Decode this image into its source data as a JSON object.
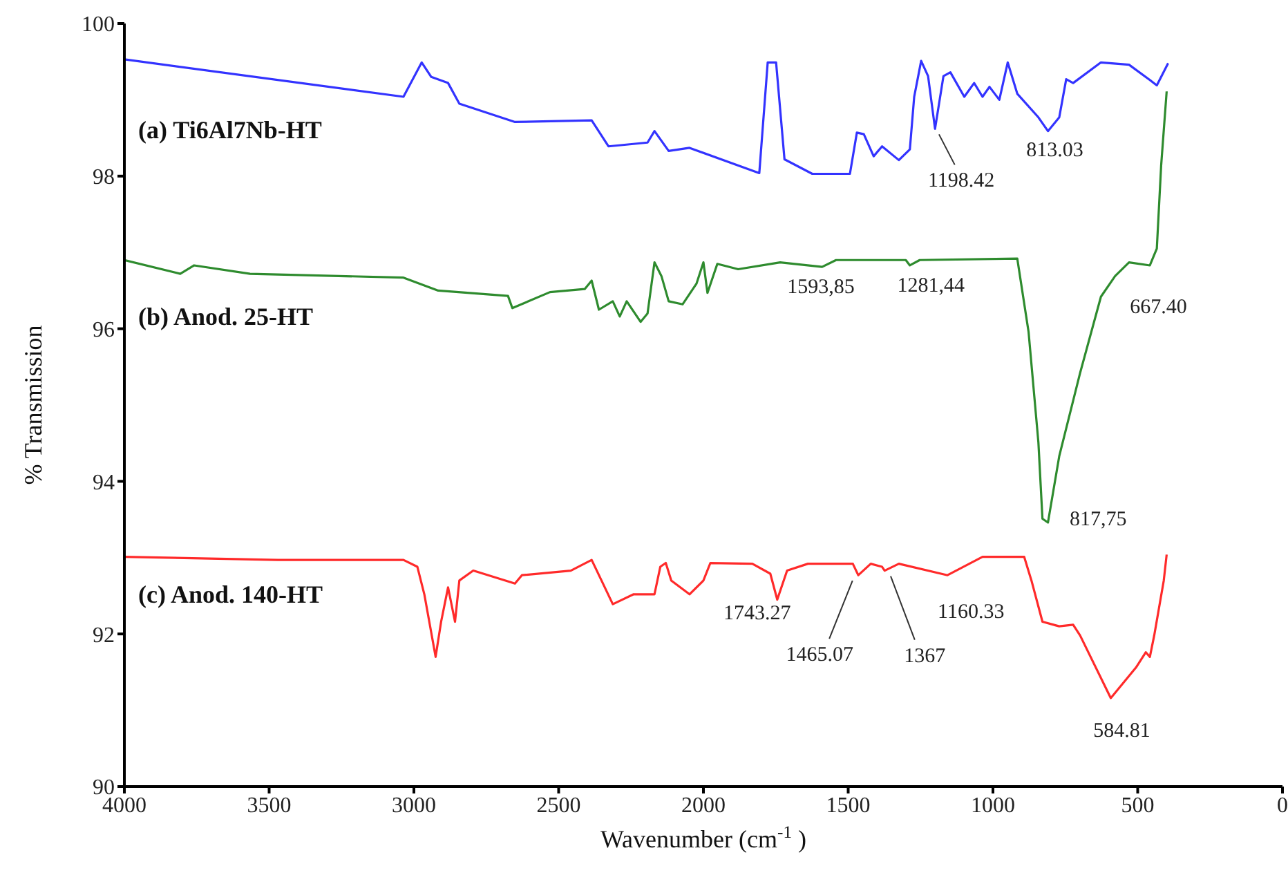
{
  "chart_data": {
    "type": "line",
    "xlabel": "Wavenumber  (cm$^{-1}$ )",
    "ylabel": "% Transmission",
    "xlim": [
      4000,
      0
    ],
    "xticks": [
      4000,
      3500,
      3000,
      2500,
      2000,
      1500,
      1000,
      500,
      0
    ],
    "ylim": [
      90,
      100
    ],
    "yticks": [
      90,
      92,
      94,
      96,
      98,
      100
    ],
    "grid": false,
    "legend": false,
    "marker": "none",
    "line_style": "solid",
    "series": [
      {
        "name": "(a) Ti6Al7Nb-HT",
        "color": "#3333ff",
        "x": [
          4000,
          3036,
          2973,
          2940,
          2882,
          2843,
          2651,
          2386,
          2328,
          2193,
          2169,
          2120,
          2048,
          1807,
          1778,
          1749,
          1720,
          1624,
          1494,
          1470,
          1446,
          1412,
          1383,
          1325,
          1287,
          1272,
          1248,
          1224,
          1200,
          1171,
          1147,
          1099,
          1065,
          1036,
          1012,
          978,
          949,
          916,
          843,
          810,
          771,
          747,
          723,
          627,
          530,
          458,
          434,
          395
        ],
        "values": [
          99.53,
          99.04,
          99.49,
          99.3,
          99.22,
          98.95,
          98.71,
          98.73,
          98.39,
          98.44,
          98.59,
          98.33,
          98.37,
          98.04,
          99.49,
          99.49,
          98.22,
          98.03,
          98.03,
          98.57,
          98.55,
          98.26,
          98.39,
          98.21,
          98.35,
          99.04,
          99.51,
          99.31,
          98.62,
          99.31,
          99.36,
          99.04,
          99.22,
          99.04,
          99.17,
          99.0,
          99.49,
          99.08,
          98.77,
          98.59,
          98.77,
          99.27,
          99.22,
          99.49,
          99.46,
          99.26,
          99.19,
          99.48
        ]
      },
      {
        "name": "(b)  Anod. 25-HT",
        "color": "#2e8b2e",
        "x": [
          4000,
          3807,
          3759,
          3566,
          3036,
          2916,
          2675,
          2660,
          2530,
          2410,
          2386,
          2361,
          2313,
          2289,
          2265,
          2217,
          2193,
          2169,
          2145,
          2120,
          2072,
          2024,
          2000,
          1986,
          1952,
          1880,
          1735,
          1590,
          1542,
          1301,
          1287,
          1253,
          916,
          877,
          843,
          829,
          810,
          771,
          699,
          627,
          578,
          530,
          458,
          434,
          419,
          400
        ],
        "values": [
          96.9,
          96.72,
          96.83,
          96.72,
          96.67,
          96.5,
          96.43,
          96.27,
          96.48,
          96.52,
          96.63,
          96.25,
          96.36,
          96.16,
          96.36,
          96.09,
          96.2,
          96.87,
          96.69,
          96.36,
          96.32,
          96.59,
          96.87,
          96.47,
          96.85,
          96.78,
          96.87,
          96.81,
          96.9,
          96.9,
          96.83,
          96.9,
          96.92,
          95.96,
          94.51,
          93.51,
          93.46,
          94.33,
          95.42,
          96.42,
          96.69,
          96.87,
          96.83,
          97.05,
          98.14,
          99.11
        ]
      },
      {
        "name": "(c) Anod. 140-HT",
        "color": "#ff2a2a",
        "x": [
          4000,
          3470,
          3036,
          2988,
          2964,
          2925,
          2906,
          2882,
          2858,
          2843,
          2795,
          2651,
          2627,
          2458,
          2386,
          2352,
          2313,
          2241,
          2169,
          2149,
          2130,
          2111,
          2048,
          2000,
          1976,
          1831,
          1769,
          1745,
          1711,
          1639,
          1484,
          1465,
          1422,
          1383,
          1374,
          1325,
          1157,
          1036,
          892,
          867,
          829,
          771,
          723,
          699,
          593,
          506,
          472,
          458,
          443,
          410,
          400
        ],
        "values": [
          93.01,
          92.97,
          92.97,
          92.88,
          92.52,
          91.7,
          92.16,
          92.61,
          92.16,
          92.7,
          92.83,
          92.66,
          92.77,
          92.83,
          92.97,
          92.7,
          92.39,
          92.52,
          92.52,
          92.88,
          92.93,
          92.7,
          92.52,
          92.7,
          92.93,
          92.92,
          92.79,
          92.45,
          92.83,
          92.92,
          92.92,
          92.77,
          92.92,
          92.88,
          92.83,
          92.92,
          92.77,
          93.01,
          93.01,
          92.7,
          92.16,
          92.1,
          92.12,
          91.98,
          91.16,
          91.56,
          91.76,
          91.7,
          91.98,
          92.7,
          93.04
        ]
      }
    ],
    "annotations": [
      {
        "text": "1198.42",
        "x": 1200,
        "y": 98.62
      },
      {
        "text": "813.03",
        "x": 810,
        "y": 98.59
      },
      {
        "text": "1593,85",
        "x": 1594,
        "y": 96.81
      },
      {
        "text": "1281,44",
        "x": 1281,
        "y": 96.83
      },
      {
        "text": "667.40",
        "x": 667,
        "y": 96.1
      },
      {
        "text": "817,75",
        "x": 818,
        "y": 93.5
      },
      {
        "text": "1743.27",
        "x": 1743,
        "y": 92.45
      },
      {
        "text": "1465.07",
        "x": 1465,
        "y": 92.77
      },
      {
        "text": "1367",
        "x": 1374,
        "y": 92.83
      },
      {
        "text": "1160.33",
        "x": 1157,
        "y": 92.77
      },
      {
        "text": "584.81",
        "x": 593,
        "y": 91.16
      }
    ]
  }
}
